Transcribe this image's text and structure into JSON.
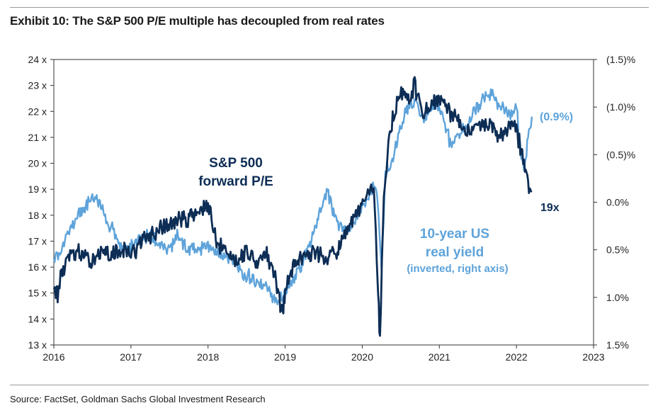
{
  "header": {
    "title": "Exhibit 10: The S&P 500 P/E multiple has decoupled from real rates"
  },
  "footer": {
    "source": "Source: FactSet, Goldman Sachs Global Investment Research"
  },
  "colors": {
    "pe_series": "#0d2d55",
    "real_yield_series": "#5ea3da",
    "axis": "#333333"
  },
  "chart_data": {
    "type": "line",
    "title": "Exhibit 10: The S&P 500 P/E multiple has decoupled from real rates",
    "x_range": [
      2016,
      2023
    ],
    "x_ticks": [
      "2016",
      "2017",
      "2018",
      "2019",
      "2020",
      "2021",
      "2022",
      "2023"
    ],
    "y_left": {
      "range": [
        13,
        24
      ],
      "ticks": [
        "13 x",
        "14 x",
        "15 x",
        "16 x",
        "17 x",
        "18 x",
        "19 x",
        "20 x",
        "21 x",
        "22 x",
        "23 x",
        "24 x"
      ]
    },
    "y_right": {
      "range": [
        -1.5,
        1.5
      ],
      "inverted": true,
      "ticks": [
        "(1.5)%",
        "(1.0)%",
        "(0.5)%",
        "0.0%",
        "0.5%",
        "1.0%",
        "1.5%"
      ]
    },
    "series": [
      {
        "name": "S&P 500 forward P/E",
        "axis": "left",
        "x": [
          2016.0,
          2016.05,
          2016.1,
          2016.2,
          2016.3,
          2016.45,
          2016.6,
          2016.75,
          2016.85,
          2017.0,
          2017.15,
          2017.3,
          2017.45,
          2017.6,
          2017.75,
          2017.9,
          2018.0,
          2018.08,
          2018.12,
          2018.2,
          2018.35,
          2018.5,
          2018.65,
          2018.75,
          2018.85,
          2018.97,
          2019.0,
          2019.1,
          2019.25,
          2019.4,
          2019.55,
          2019.7,
          2019.85,
          2019.95,
          2020.05,
          2020.15,
          2020.2,
          2020.23,
          2020.28,
          2020.35,
          2020.45,
          2020.55,
          2020.62,
          2020.68,
          2020.72,
          2020.8,
          2020.9,
          2021.0,
          2021.1,
          2021.2,
          2021.35,
          2021.5,
          2021.6,
          2021.7,
          2021.8,
          2021.9,
          2022.0,
          2022.05,
          2022.1,
          2022.15,
          2022.2
        ],
        "values": [
          15.3,
          14.9,
          15.8,
          16.4,
          16.6,
          16.2,
          16.6,
          16.4,
          16.7,
          16.5,
          17.0,
          17.3,
          17.6,
          17.8,
          17.9,
          18.2,
          18.4,
          17.3,
          16.8,
          16.7,
          16.3,
          16.6,
          16.2,
          16.5,
          15.8,
          14.2,
          15.1,
          16.0,
          16.6,
          16.5,
          16.4,
          16.7,
          17.6,
          18.1,
          18.7,
          19.0,
          15.5,
          13.2,
          18.8,
          21.0,
          22.4,
          22.8,
          22.3,
          23.1,
          22.5,
          21.8,
          22.3,
          22.4,
          22.1,
          21.7,
          21.2,
          21.6,
          21.5,
          21.4,
          21.0,
          21.5,
          21.3,
          20.7,
          20.0,
          19.1,
          18.9
        ]
      },
      {
        "name": "10-year US real yield (inverted, right axis)",
        "axis": "right",
        "x": [
          2016.0,
          2016.1,
          2016.2,
          2016.35,
          2016.5,
          2016.6,
          2016.7,
          2016.85,
          2016.95,
          2017.1,
          2017.25,
          2017.4,
          2017.5,
          2017.6,
          2017.75,
          2017.9,
          2018.0,
          2018.15,
          2018.3,
          2018.45,
          2018.6,
          2018.75,
          2018.9,
          2019.0,
          2019.15,
          2019.3,
          2019.45,
          2019.55,
          2019.65,
          2019.8,
          2019.95,
          2020.05,
          2020.15,
          2020.2,
          2020.25,
          2020.3,
          2020.4,
          2020.5,
          2020.6,
          2020.7,
          2020.8,
          2020.95,
          2021.05,
          2021.15,
          2021.25,
          2021.35,
          2021.45,
          2021.55,
          2021.6,
          2021.7,
          2021.8,
          2021.9,
          2022.0,
          2022.05,
          2022.1,
          2022.15,
          2022.2
        ],
        "values": [
          0.6,
          0.5,
          0.3,
          0.1,
          -0.05,
          0.0,
          0.2,
          0.45,
          0.5,
          0.4,
          0.35,
          0.45,
          0.5,
          0.35,
          0.5,
          0.5,
          0.45,
          0.55,
          0.6,
          0.75,
          0.8,
          0.9,
          1.05,
          0.95,
          0.75,
          0.5,
          0.1,
          -0.1,
          0.2,
          0.3,
          0.15,
          0.0,
          -0.2,
          0.0,
          0.7,
          -0.3,
          -0.5,
          -0.8,
          -1.0,
          -1.05,
          -0.85,
          -1.05,
          -0.85,
          -0.6,
          -0.7,
          -0.8,
          -0.95,
          -1.05,
          -1.15,
          -1.1,
          -1.0,
          -0.9,
          -1.0,
          -0.55,
          -0.3,
          -0.7,
          -0.9
        ]
      }
    ],
    "annotations": {
      "pe_label_line1": "S&P 500",
      "pe_label_line2": "forward P/E",
      "yield_label_line1": "10-year US",
      "yield_label_line2": "real yield",
      "yield_label_line3": "(inverted, right axis)",
      "pe_end_label": "19x",
      "yield_end_label": "(0.9%)"
    }
  }
}
